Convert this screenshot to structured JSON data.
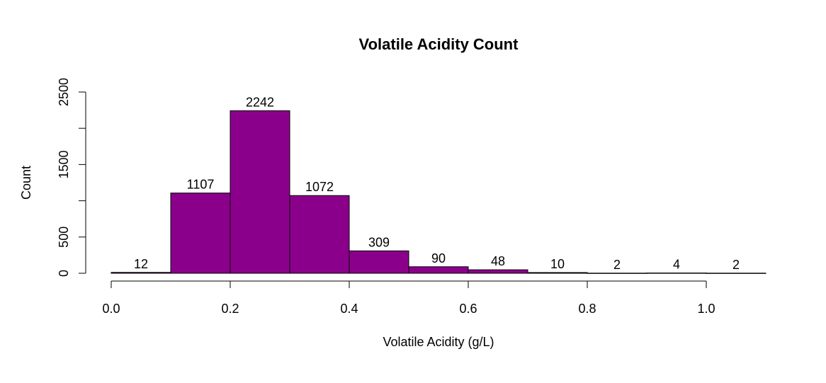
{
  "chart_data": {
    "type": "bar",
    "title": "Volatile Acidity Count",
    "xlabel": "Volatile Acidity (g/L)",
    "ylabel": "Count",
    "bins": [
      {
        "from": 0.0,
        "to": 0.1,
        "count": 12,
        "label": "12"
      },
      {
        "from": 0.1,
        "to": 0.2,
        "count": 1107,
        "label": "1107"
      },
      {
        "from": 0.2,
        "to": 0.3,
        "count": 2242,
        "label": "2242"
      },
      {
        "from": 0.3,
        "to": 0.4,
        "count": 1072,
        "label": "1072"
      },
      {
        "from": 0.4,
        "to": 0.5,
        "count": 309,
        "label": "309"
      },
      {
        "from": 0.5,
        "to": 0.6,
        "count": 90,
        "label": "90"
      },
      {
        "from": 0.6,
        "to": 0.7,
        "count": 48,
        "label": "48"
      },
      {
        "from": 0.7,
        "to": 0.8,
        "count": 10,
        "label": "10"
      },
      {
        "from": 0.8,
        "to": 0.9,
        "count": 2,
        "label": "2"
      },
      {
        "from": 0.9,
        "to": 1.0,
        "count": 4,
        "label": "4"
      },
      {
        "from": 1.0,
        "to": 1.1,
        "count": 2,
        "label": "2"
      }
    ],
    "xticks": [
      {
        "value": 0.0,
        "label": "0.0"
      },
      {
        "value": 0.2,
        "label": "0.2"
      },
      {
        "value": 0.4,
        "label": "0.4"
      },
      {
        "value": 0.6,
        "label": "0.6"
      },
      {
        "value": 0.8,
        "label": "0.8"
      },
      {
        "value": 1.0,
        "label": "1.0"
      }
    ],
    "yticks": [
      {
        "value": 0,
        "label": "0"
      },
      {
        "value": 500,
        "label": "500"
      },
      {
        "value": 1000,
        "label": ""
      },
      {
        "value": 1500,
        "label": "1500"
      },
      {
        "value": 2000,
        "label": ""
      },
      {
        "value": 2500,
        "label": "2500"
      }
    ],
    "xlim": [
      0.0,
      1.1
    ],
    "ylim": [
      0,
      2500
    ],
    "x_axis_range": [
      0.0,
      1.0
    ],
    "bar_color": "#8B008B",
    "grid": false,
    "legend": "none"
  }
}
